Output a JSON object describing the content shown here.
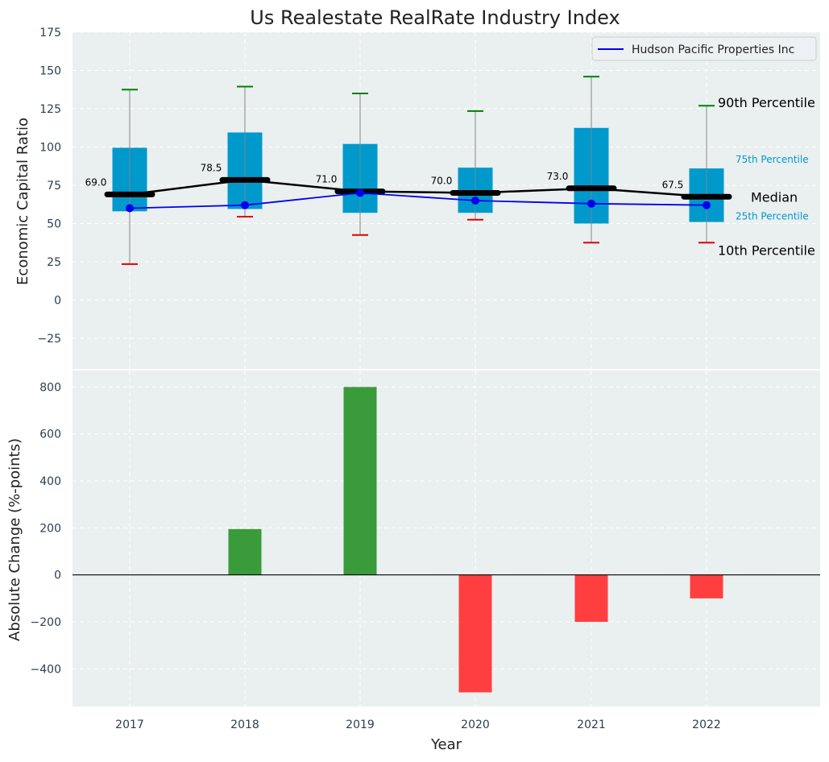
{
  "title": "Us Realestate RealRate Industry Index",
  "colors": {
    "panel_bg": "#eaeff0",
    "grid": "#ffffff",
    "box": "#0099cc",
    "whisker": "#888888",
    "whisker_top_cap": "#008000",
    "whisker_bottom_cap": "#e00000",
    "median_line": "#000000",
    "company_line": "#0000ee",
    "bar_positive": "#3a9b3a",
    "bar_negative": "#ff3f3f",
    "tick_text": "#2c3e50",
    "annotation_small": "#0099cc"
  },
  "chart_data": [
    {
      "type": "box",
      "ylabel": "Economic Capital Ratio",
      "ylim": [
        -45,
        175
      ],
      "yticks": [
        -25,
        0,
        25,
        50,
        75,
        100,
        125,
        150,
        175
      ],
      "categories": [
        "2017",
        "2018",
        "2019",
        "2020",
        "2021",
        "2022"
      ],
      "p10": [
        23.5,
        54.5,
        42.5,
        52.5,
        37.5,
        37.5
      ],
      "p25": [
        58,
        59.5,
        57,
        57,
        50,
        51
      ],
      "median": [
        69.0,
        78.5,
        71.0,
        70.0,
        73.0,
        67.5
      ],
      "median_labels": [
        "69.0",
        "78.5",
        "71.0",
        "70.0",
        "73.0",
        "67.5"
      ],
      "p75": [
        99.5,
        109.5,
        102,
        86.5,
        112.5,
        86
      ],
      "p90": [
        137.5,
        139.5,
        135,
        123.5,
        146,
        127
      ],
      "series": [
        {
          "name": "Hudson Pacific Properties Inc",
          "values": [
            60,
            62,
            70,
            65,
            63,
            62
          ]
        }
      ],
      "legend_position": "top-right",
      "annotations": {
        "p90": "90th Percentile",
        "p75": "75th Percentile",
        "median": "Median",
        "p25": "25th Percentile",
        "p10": "10th Percentile"
      },
      "grid": true
    },
    {
      "type": "bar",
      "xlabel": "Year",
      "ylabel": "Absolute Change (%-points)",
      "ylim": [
        -560,
        870
      ],
      "yticks": [
        -400,
        -200,
        0,
        200,
        400,
        600,
        800
      ],
      "categories": [
        "2017",
        "2018",
        "2019",
        "2020",
        "2021",
        "2022"
      ],
      "values": [
        0,
        195,
        800,
        -500,
        -200,
        -100
      ],
      "grid": true
    }
  ]
}
